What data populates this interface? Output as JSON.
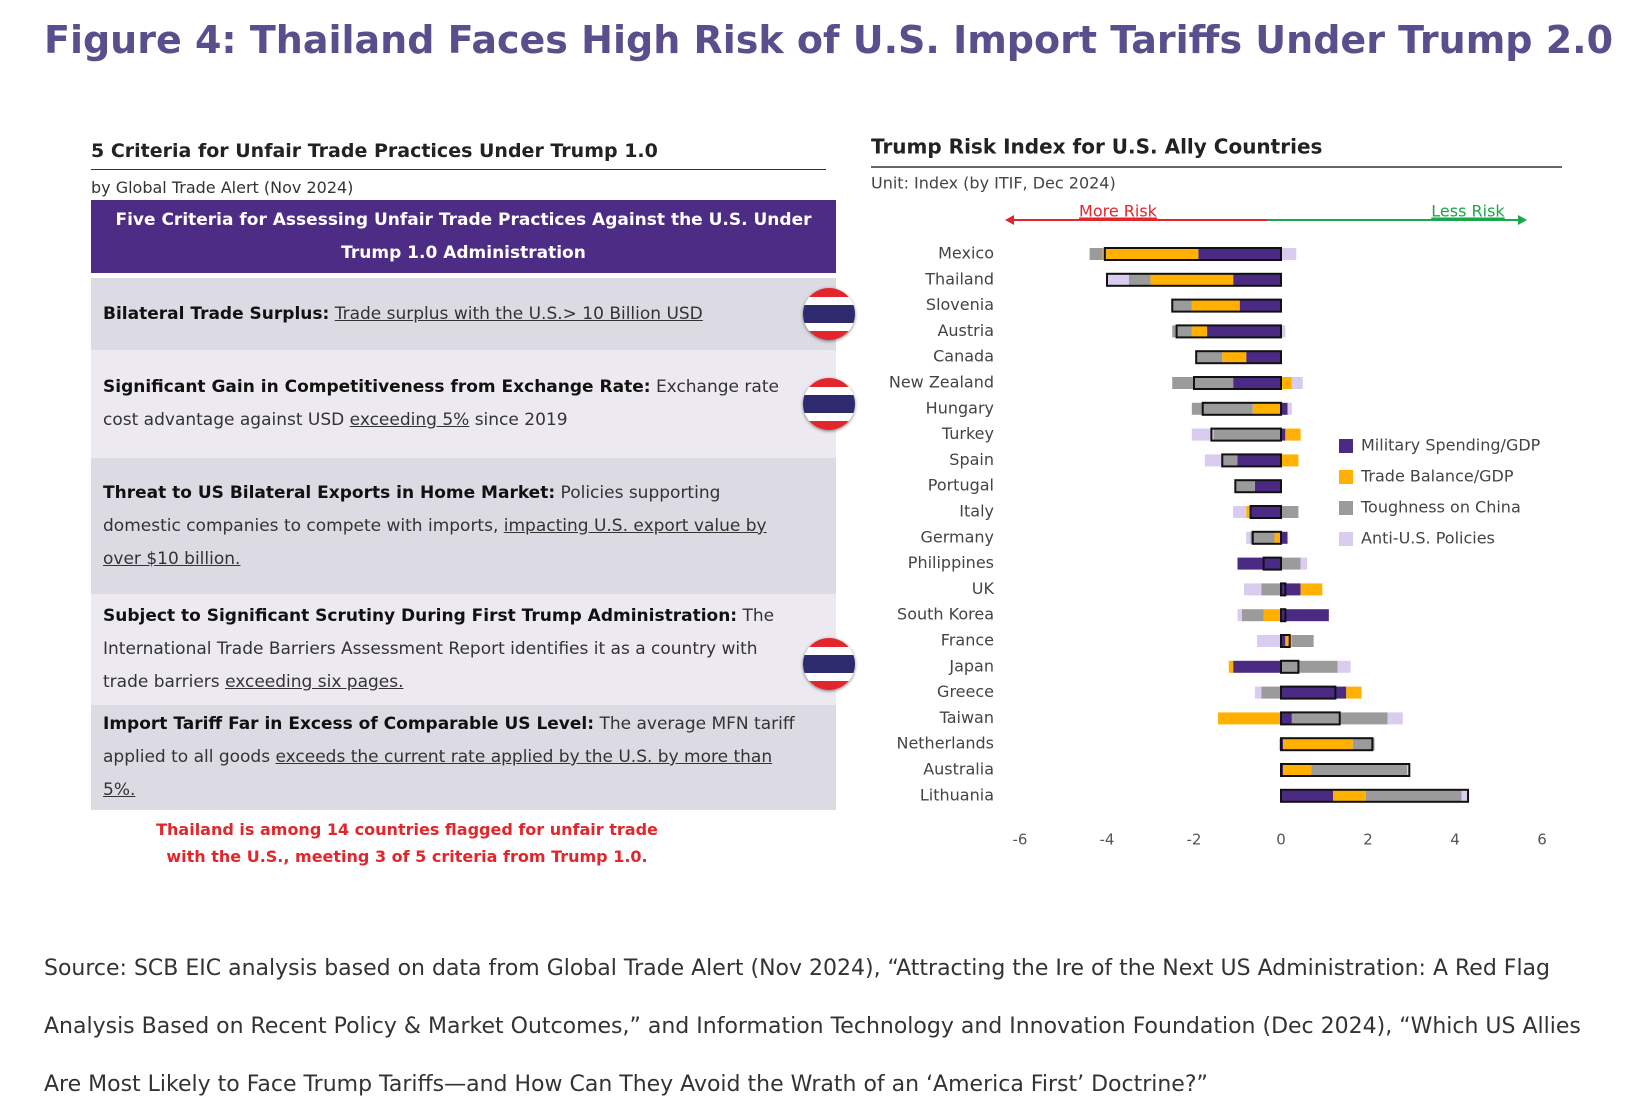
{
  "title": "Figure 4: Thailand Faces High Risk of U.S. Import Tariffs Under Trump 2.0",
  "table": {
    "title": "5 Criteria for Unfair Trade Practices Under Trump 1.0",
    "subtitle": "by Global Trade Alert (Nov 2024)",
    "header": "Five Criteria for Assessing Unfair Trade Practices Against the U.S. Under Trump 1.0 Administration",
    "rows": [
      {
        "flag": true,
        "parts": [
          {
            "style": "bold",
            "text": "Bilateral Trade Surplus:"
          },
          {
            "style": "underline",
            "text": "Trade surplus with the U.S.> 10 Billion USD"
          }
        ]
      },
      {
        "flag": true,
        "parts": [
          {
            "style": "bold",
            "text": "Significant Gain in Competitiveness from Exchange Rate:"
          },
          {
            "style": "plain",
            "text": "Exchange rate cost advantage against USD"
          },
          {
            "style": "underline",
            "text": "exceeding 5%"
          },
          {
            "style": "plain",
            "text": "since 2019"
          }
        ]
      },
      {
        "flag": false,
        "parts": [
          {
            "style": "bold",
            "text": "Threat to US Bilateral Exports in Home Market:"
          },
          {
            "style": "plain",
            "text": "Policies supporting domestic companies to compete with imports,"
          },
          {
            "style": "underline",
            "text": "impacting U.S. export value by over $10 billion."
          }
        ]
      },
      {
        "flag": true,
        "parts": [
          {
            "style": "bold",
            "text": "Subject to Significant Scrutiny During First Trump Administration:"
          },
          {
            "style": "plain",
            "text": "The International Trade Barriers Assessment Report identifies it as a country with trade barriers"
          },
          {
            "style": "underline",
            "text": "exceeding six pages."
          }
        ]
      },
      {
        "flag": false,
        "parts": [
          {
            "style": "bold",
            "text": "Import Tariff Far in Excess of Comparable US Level:"
          },
          {
            "style": "plain",
            "text": "The average MFN tariff applied to all goods"
          },
          {
            "style": "underline",
            "text": "exceeds the current rate applied by the U.S. by more than 5%."
          }
        ]
      }
    ],
    "note": "Thailand is among 14 countries flagged for unfair trade with the U.S., meeting 3 of 5 criteria from Trump 1.0."
  },
  "chart_data": {
    "type": "diverging_stacked_bar",
    "title": "Trump Risk Index for U.S. Ally Countries",
    "subtitle": "Unit: Index (by ITIF, Dec 2024)",
    "annotations": [
      "More Risk",
      "Less Risk"
    ],
    "categories": [
      "Mexico",
      "Thailand",
      "Slovenia",
      "Austria",
      "Canada",
      "New Zealand",
      "Hungary",
      "Turkey",
      "Spain",
      "Portugal",
      "Italy",
      "Germany",
      "Philippines",
      "UK",
      "South Korea",
      "France",
      "Japan",
      "Greece",
      "Taiwan",
      "Netherlands",
      "Australia",
      "Lithuania"
    ],
    "series": [
      {
        "name": "Military Spending/GDP",
        "color": "#4b2a84",
        "values": [
          -1.9,
          -1.1,
          -0.95,
          -1.7,
          -0.8,
          -1.1,
          0.15,
          0.1,
          -1.0,
          -0.6,
          -0.7,
          0.15,
          -1.0,
          0.45,
          1.1,
          0.1,
          -1.1,
          1.5,
          0.25,
          0.05,
          0.05,
          1.2
        ]
      },
      {
        "name": "Trade Balance/GDP",
        "color": "#ffb000",
        "values": [
          -2.2,
          -1.9,
          -1.1,
          -0.35,
          -0.55,
          0.25,
          -0.65,
          0.35,
          0.4,
          0,
          -0.1,
          -0.15,
          0,
          0.5,
          -0.4,
          0.15,
          -0.1,
          0.35,
          -1.45,
          1.6,
          0.65,
          0.75
        ]
      },
      {
        "name": "Toughness on China",
        "color": "#9b9b9b",
        "values": [
          -0.3,
          -0.5,
          -0.45,
          -0.45,
          -0.6,
          -1.4,
          -1.4,
          -1.55,
          -0.35,
          -0.45,
          0.4,
          -0.55,
          0.45,
          -0.45,
          -0.5,
          0.5,
          1.3,
          -0.45,
          2.2,
          0.5,
          2.2,
          2.2
        ]
      },
      {
        "name": "Anti-U.S. Policies",
        "color": "#d9ccee",
        "values": [
          0.35,
          -0.5,
          0,
          0.1,
          0,
          0.25,
          0.1,
          -0.5,
          -0.4,
          0,
          -0.3,
          -0.1,
          0.15,
          -0.4,
          -0.1,
          -0.55,
          0.3,
          -0.15,
          0.35,
          -0.05,
          0.05,
          0.15
        ]
      }
    ],
    "xlim": [
      -6,
      6
    ],
    "xticks": [
      -6,
      -4,
      -2,
      0,
      2,
      4,
      6
    ],
    "grid": false,
    "legend": "center-right",
    "total_outline_color": "#111111",
    "more_risk_color": "#e3262b",
    "less_risk_color": "#1aa64b"
  },
  "source": "Source: SCB EIC analysis based on data from Global Trade Alert (Nov 2024), “Attracting the Ire of the Next US Administration: A Red Flag Analysis Based on Recent Policy & Market Outcomes,” and Information Technology and Innovation Foundation (Dec 2024), “Which US Allies Are Most Likely to Face Trump Tariffs—and How Can They Avoid the Wrath of an ‘America First’ Doctrine?”"
}
